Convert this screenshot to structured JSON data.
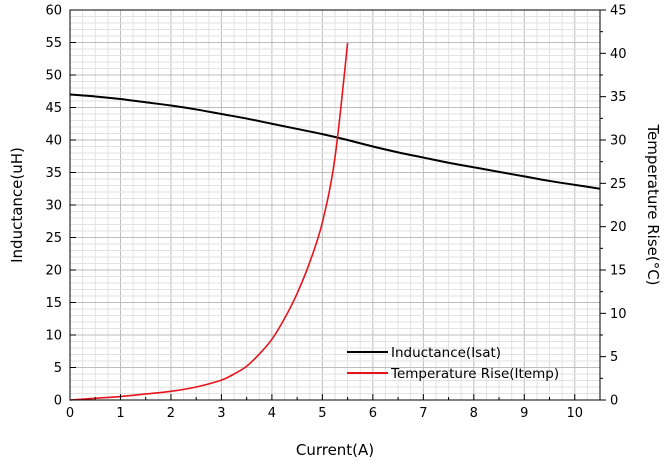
{
  "chart_data": {
    "type": "line",
    "title": "",
    "xlabel": "Current(A)",
    "ylabel": "Inductance(uH)",
    "y2label": "Temperature Rise(°C)",
    "xlim": [
      0,
      10.5
    ],
    "ylim": [
      0,
      60
    ],
    "y2lim": [
      0,
      45
    ],
    "grid": true,
    "legend_position": "bottom-right",
    "x_ticks": [
      0,
      1,
      2,
      3,
      4,
      5,
      6,
      7,
      8,
      9,
      10
    ],
    "y_ticks": [
      0,
      5,
      10,
      15,
      20,
      25,
      30,
      35,
      40,
      45,
      50,
      55,
      60
    ],
    "y2_ticks": [
      0,
      5,
      10,
      15,
      20,
      25,
      30,
      35,
      40,
      45
    ],
    "series": [
      {
        "name": "Inductance(Isat)",
        "axis": "left",
        "color": "#000000",
        "x": [
          0,
          0.5,
          1,
          1.5,
          2,
          2.5,
          3,
          3.5,
          4,
          4.5,
          5,
          5.5,
          6,
          6.5,
          7,
          7.5,
          8,
          8.5,
          9,
          9.5,
          10,
          10.5
        ],
        "y": [
          47.0,
          46.7,
          46.3,
          45.8,
          45.3,
          44.7,
          44.0,
          43.3,
          42.5,
          41.7,
          40.9,
          40.0,
          39.0,
          38.1,
          37.3,
          36.5,
          35.8,
          35.1,
          34.4,
          33.7,
          33.1,
          32.5
        ]
      },
      {
        "name": "Temperature Rise(Itemp)",
        "axis": "right",
        "color": "#e8141c",
        "x": [
          0,
          0.5,
          1,
          1.5,
          2,
          2.5,
          3,
          3.25,
          3.5,
          3.75,
          4,
          4.25,
          4.5,
          4.75,
          5,
          5.25,
          5.5
        ],
        "y": [
          0,
          0.2,
          0.4,
          0.7,
          1.0,
          1.5,
          2.3,
          3.0,
          3.9,
          5.3,
          7.0,
          9.4,
          12.3,
          15.9,
          20.5,
          28.0,
          41.2
        ]
      }
    ]
  }
}
